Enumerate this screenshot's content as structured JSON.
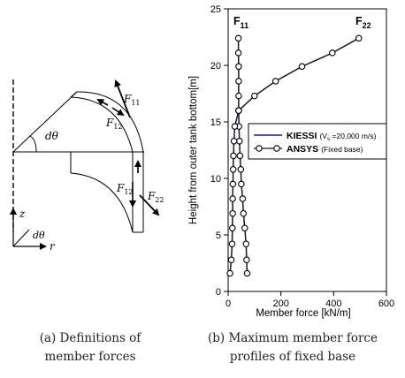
{
  "captions": {
    "a_line1": "(a) Definitions of",
    "a_line2": "member forces",
    "b_line1": "(b) Maximum member force",
    "b_line2": "profiles of fixed base"
  },
  "diagram": {
    "angle_label": "dθ",
    "f11_label": "F",
    "f11_sub": "11",
    "f12_label": "F",
    "f12_sub": "12",
    "f22_label": "F",
    "f22_sub": "22",
    "axis_z": "z",
    "axis_r": "r",
    "axis_angle": "dθ"
  },
  "chart_data": {
    "type": "line",
    "title": "",
    "xlabel": "Member force [kN/m]",
    "ylabel": "Height from outer tank bottom[m]",
    "xlim": [
      0,
      600
    ],
    "ylim": [
      0,
      25
    ],
    "xticks": [
      0,
      200,
      400,
      600
    ],
    "yticks": [
      0,
      5,
      10,
      15,
      20,
      25
    ],
    "grid": false,
    "legend_position": "right",
    "annotations": [
      {
        "label": "F",
        "sub": "11"
      },
      {
        "label": "F",
        "sub": "22"
      }
    ],
    "series": [
      {
        "name": "KIESSI",
        "name_note": "(V",
        "name_note_sub": "s",
        "name_note_rest": " =20,000 m/s)",
        "color": "#1a1a6e",
        "marker": "none",
        "curves": [
          {
            "x": [
              72,
              70,
              68,
              63,
              58,
              55,
              50,
              48,
              45,
              43,
              41,
              40
            ],
            "y": [
              1.6,
              2.8,
              4.2,
              5.6,
              6.9,
              8.2,
              9.5,
              10.8,
              12.0,
              13.3,
              14.6,
              16.0
            ]
          },
          {
            "x": [
              40,
              40,
              40,
              40,
              39,
              39
            ],
            "y": [
              16.0,
              17.3,
              18.6,
              19.9,
              21.1,
              22.4
            ]
          },
          {
            "x": [
              7,
              12,
              15,
              16,
              17,
              17,
              18,
              19,
              20,
              22,
              25,
              40
            ],
            "y": [
              1.6,
              2.8,
              4.2,
              5.6,
              6.9,
              8.2,
              9.5,
              10.8,
              12.0,
              13.3,
              14.6,
              16.0
            ]
          },
          {
            "x": [
              40,
              100,
              180,
              280,
              395,
              495
            ],
            "y": [
              16.0,
              17.3,
              18.6,
              19.9,
              21.1,
              22.4
            ]
          }
        ]
      },
      {
        "name": "ANSYS",
        "name_note": "(Fixed base)",
        "color": "#1a1a1a",
        "marker": "circle",
        "curves": [
          {
            "x": [
              72,
              70,
              68,
              63,
              58,
              55,
              50,
              48,
              45,
              43,
              41,
              40
            ],
            "y": [
              1.6,
              2.8,
              4.2,
              5.6,
              6.9,
              8.2,
              9.5,
              10.8,
              12.0,
              13.3,
              14.6,
              16.0
            ]
          },
          {
            "x": [
              40,
              40,
              40,
              40,
              39,
              39
            ],
            "y": [
              16.0,
              17.3,
              18.6,
              19.9,
              21.1,
              22.4
            ]
          },
          {
            "x": [
              7,
              12,
              15,
              16,
              17,
              17,
              18,
              19,
              20,
              22,
              25,
              40
            ],
            "y": [
              1.6,
              2.8,
              4.2,
              5.6,
              6.9,
              8.2,
              9.5,
              10.8,
              12.0,
              13.3,
              14.6,
              16.0
            ]
          },
          {
            "x": [
              40,
              100,
              180,
              280,
              395,
              495
            ],
            "y": [
              16.0,
              17.3,
              18.6,
              19.9,
              21.1,
              22.4
            ]
          }
        ]
      }
    ]
  }
}
